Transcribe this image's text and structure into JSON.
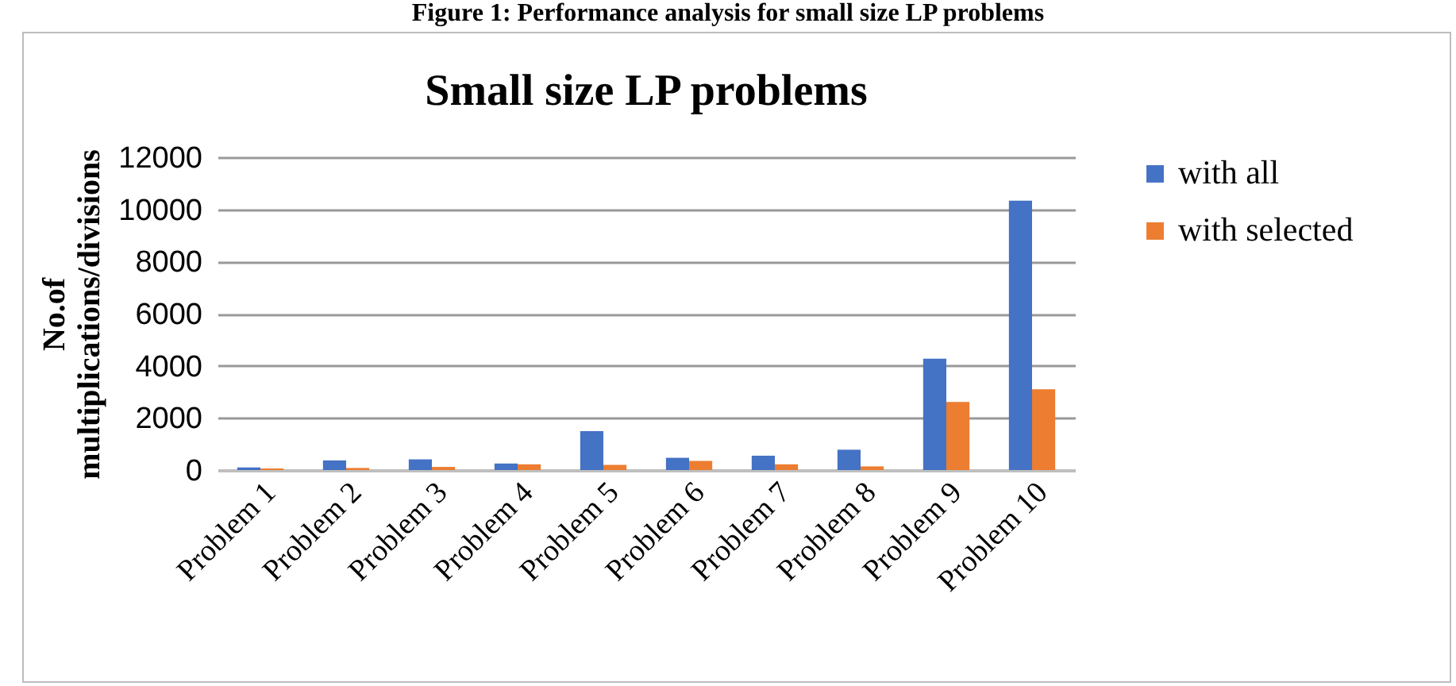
{
  "chart_data": {
    "type": "bar",
    "title": "Small size LP problems",
    "ylabel": "No.of multiplications/divisions",
    "annotations": [
      "Figure 1: Performance analysis for small size LP problems"
    ],
    "categories": [
      "Problem 1",
      "Problem 2",
      "Problem 3",
      "Problem 4",
      "Problem 5",
      "Problem 6",
      "Problem 7",
      "Problem 8",
      "Problem 9",
      "Problem 10"
    ],
    "series": [
      {
        "name": "with all",
        "color": "#4472c4",
        "values": [
          100,
          370,
          410,
          250,
          1490,
          470,
          550,
          780,
          4270,
          10330
        ]
      },
      {
        "name": "with selected",
        "color": "#ed7d31",
        "values": [
          60,
          80,
          120,
          220,
          200,
          350,
          220,
          140,
          2610,
          3100
        ]
      }
    ],
    "ylim": [
      0,
      12000
    ],
    "yticks": [
      0,
      2000,
      4000,
      6000,
      8000,
      10000,
      12000
    ],
    "grid": "y",
    "legend": "right"
  }
}
